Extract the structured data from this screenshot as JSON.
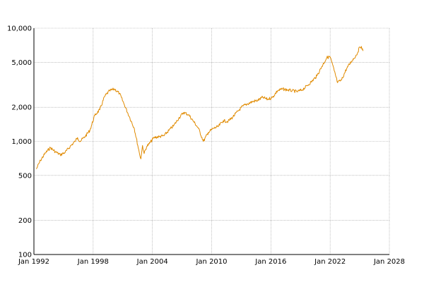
{
  "chart_data": {
    "type": "line",
    "title": "",
    "xlabel": "",
    "ylabel": "",
    "x_scale": "time",
    "y_scale": "log",
    "xlim": [
      "1992-01",
      "2028-01"
    ],
    "ylim": [
      100,
      10000
    ],
    "grid": true,
    "legend": "none",
    "x_ticks": [
      {
        "date": "1992-01",
        "label": "Jan 1992"
      },
      {
        "date": "1998-01",
        "label": "Jan 1998"
      },
      {
        "date": "2004-01",
        "label": "Jan 2004"
      },
      {
        "date": "2010-01",
        "label": "Jan 2010"
      },
      {
        "date": "2016-01",
        "label": "Jan 2016"
      },
      {
        "date": "2022-01",
        "label": "Jan 2022"
      },
      {
        "date": "2028-01",
        "label": "Jan 2028"
      }
    ],
    "y_ticks": [
      {
        "value": 100,
        "label": "100"
      },
      {
        "value": 200,
        "label": "200"
      },
      {
        "value": 500,
        "label": "500"
      },
      {
        "value": 1000,
        "label": "1,000"
      },
      {
        "value": 2000,
        "label": "2,000"
      },
      {
        "value": 5000,
        "label": "5,000"
      },
      {
        "value": 10000,
        "label": "10,000"
      }
    ],
    "colors": {
      "line": "#e08a00",
      "grid": "#9a9a9a",
      "axis": "#000000"
    },
    "series": [
      {
        "x": [
          "1992-04",
          "1992-09",
          "1993-03",
          "1993-09",
          "1994-03",
          "1994-09",
          "1995-03",
          "1995-09",
          "1996-03",
          "1996-06",
          "1996-09",
          "1997-03",
          "1997-09",
          "1998-03",
          "1998-09",
          "1999-03",
          "1999-09",
          "2000-03",
          "2000-09",
          "2001-03",
          "2001-09",
          "2002-03",
          "2002-09",
          "2002-11",
          "2003-01",
          "2003-03",
          "2003-06",
          "2003-09",
          "2004-03",
          "2004-09",
          "2005-03",
          "2005-09",
          "2006-03",
          "2006-09",
          "2007-03",
          "2007-09",
          "2008-03",
          "2008-09",
          "2009-03",
          "2009-09",
          "2010-03",
          "2010-09",
          "2011-03",
          "2011-09",
          "2012-03",
          "2012-09",
          "2013-03",
          "2013-09",
          "2014-03",
          "2014-09",
          "2015-03",
          "2015-09",
          "2016-03",
          "2016-09",
          "2017-03",
          "2017-09",
          "2018-03",
          "2018-09",
          "2019-03",
          "2019-09",
          "2020-03",
          "2020-09",
          "2021-03",
          "2021-09",
          "2022-01",
          "2022-06",
          "2022-10",
          "2023-03",
          "2023-09",
          "2024-03",
          "2024-09",
          "2025-01",
          "2025-03",
          "2025-05"
        ],
        "y": [
          570,
          680,
          790,
          880,
          810,
          760,
          800,
          900,
          1000,
          1080,
          1000,
          1100,
          1250,
          1700,
          1900,
          2500,
          2800,
          2900,
          2650,
          2100,
          1650,
          1300,
          800,
          700,
          920,
          780,
          900,
          950,
          1080,
          1100,
          1120,
          1250,
          1380,
          1600,
          1800,
          1720,
          1500,
          1300,
          1000,
          1200,
          1300,
          1350,
          1520,
          1500,
          1650,
          1850,
          2050,
          2150,
          2250,
          2300,
          2450,
          2350,
          2450,
          2800,
          2900,
          2850,
          2800,
          2750,
          2850,
          3100,
          3400,
          3800,
          4600,
          5500,
          5600,
          4200,
          3300,
          3500,
          4400,
          5100,
          5800,
          6800,
          6900,
          6300
        ]
      }
    ]
  }
}
